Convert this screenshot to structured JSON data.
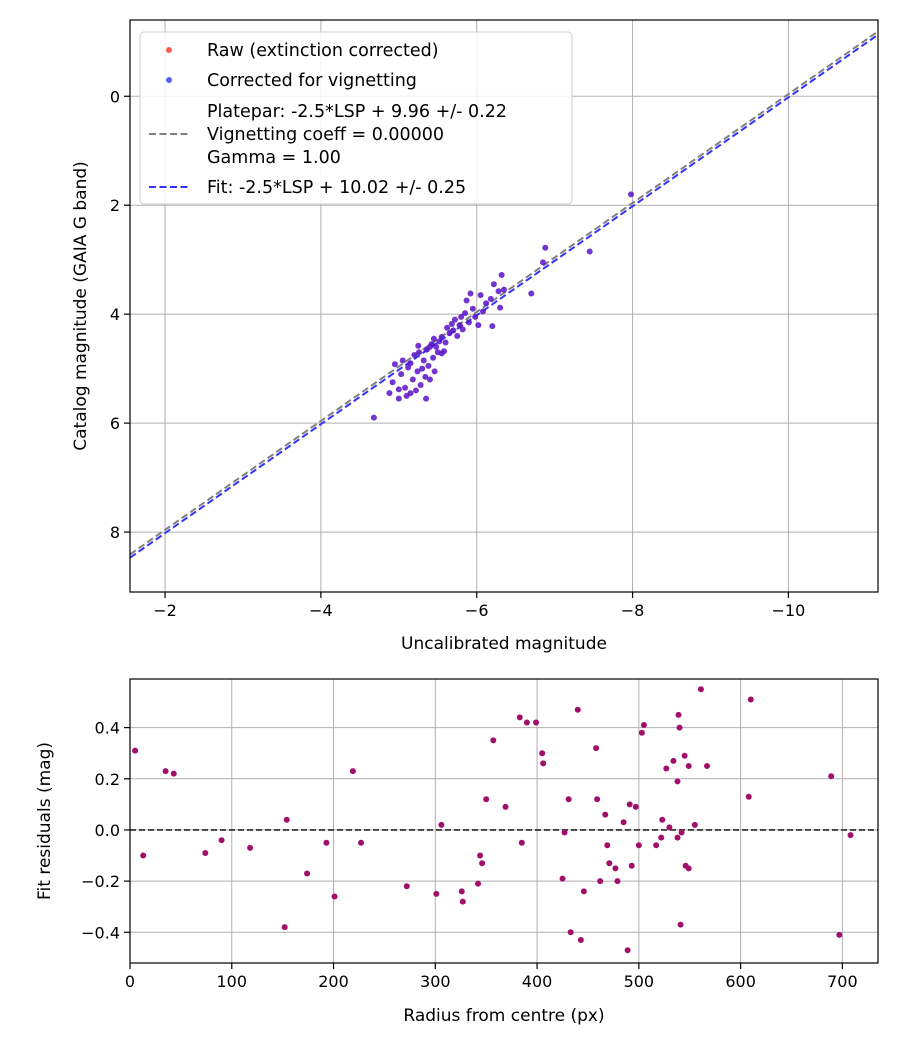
{
  "chart_data": [
    {
      "type": "scatter",
      "xlabel": "Uncalibrated magnitude",
      "ylabel": "Catalog magnitude (GAIA G band)",
      "xlim": [
        -1.55,
        -11.15
      ],
      "ylim": [
        9.1,
        -1.4
      ],
      "x_ticks": [
        -2,
        -4,
        -6,
        -8,
        -10
      ],
      "x_tick_labels": [
        "−2",
        "−4",
        "−6",
        "−8",
        "−10"
      ],
      "y_ticks": [
        0,
        2,
        4,
        6,
        8
      ],
      "y_tick_labels": [
        "0",
        "2",
        "4",
        "6",
        "8"
      ],
      "grid": true,
      "legend": {
        "position": "upper-left",
        "entries": [
          {
            "label": "Raw (extinction corrected)",
            "marker": "dot",
            "color": "#ff5a4f"
          },
          {
            "label": "Corrected for vignetting",
            "marker": "dot",
            "color": "#5a5aff"
          },
          {
            "label": "Platepar: -2.5*LSP + 9.96 +/- 0.22",
            "label2": "Vignetting coeff = 0.00000",
            "label3": "Gamma = 1.00",
            "marker": "dashed",
            "color": "#808080"
          },
          {
            "label": "Fit: -2.5*LSP + 10.02 +/- 0.25",
            "marker": "dashed",
            "color": "#3333ff"
          }
        ]
      },
      "lines": [
        {
          "name": "Platepar",
          "slope": 1,
          "intercept": 9.96,
          "color": "#808080",
          "style": "dashed"
        },
        {
          "name": "Fit",
          "slope": 1,
          "intercept": 10.02,
          "color": "#3333ff",
          "style": "dashed"
        }
      ],
      "series": [
        {
          "name": "Raw and corrected points (overlapping)",
          "color": "#5a12c8",
          "points": [
            [
              -4.68,
              5.9
            ],
            [
              -4.88,
              5.45
            ],
            [
              -4.92,
              5.25
            ],
            [
              -4.95,
              4.92
            ],
            [
              -5.0,
              5.55
            ],
            [
              -5.03,
              5.1
            ],
            [
              -5.05,
              4.85
            ],
            [
              -5.08,
              5.35
            ],
            [
              -5.1,
              5.5
            ],
            [
              -5.12,
              4.98
            ],
            [
              -5.15,
              5.45
            ],
            [
              -5.18,
              5.2
            ],
            [
              -5.2,
              4.75
            ],
            [
              -5.22,
              5.4
            ],
            [
              -5.24,
              5.05
            ],
            [
              -5.26,
              4.7
            ],
            [
              -5.28,
              5.3
            ],
            [
              -5.3,
              5.0
            ],
            [
              -5.32,
              4.85
            ],
            [
              -5.34,
              5.15
            ],
            [
              -5.36,
              4.65
            ],
            [
              -5.38,
              4.95
            ],
            [
              -5.4,
              5.2
            ],
            [
              -5.42,
              4.55
            ],
            [
              -5.44,
              4.8
            ],
            [
              -5.46,
              5.05
            ],
            [
              -5.48,
              4.6
            ],
            [
              -5.5,
              4.7
            ],
            [
              -5.52,
              4.5
            ],
            [
              -5.55,
              4.42
            ],
            [
              -5.58,
              4.68
            ],
            [
              -5.6,
              4.52
            ],
            [
              -5.62,
              4.25
            ],
            [
              -5.65,
              4.35
            ],
            [
              -5.68,
              4.18
            ],
            [
              -5.7,
              4.3
            ],
            [
              -5.72,
              4.1
            ],
            [
              -5.75,
              4.4
            ],
            [
              -5.78,
              4.2
            ],
            [
              -5.8,
              4.05
            ],
            [
              -5.82,
              4.28
            ],
            [
              -5.85,
              3.98
            ],
            [
              -5.87,
              3.75
            ],
            [
              -5.9,
              4.15
            ],
            [
              -5.92,
              3.62
            ],
            [
              -5.95,
              3.9
            ],
            [
              -5.98,
              4.05
            ],
            [
              -6.02,
              4.2
            ],
            [
              -6.05,
              3.65
            ],
            [
              -6.08,
              3.95
            ],
            [
              -6.12,
              3.8
            ],
            [
              -6.18,
              3.72
            ],
            [
              -6.2,
              4.22
            ],
            [
              -6.22,
              3.45
            ],
            [
              -6.28,
              3.58
            ],
            [
              -6.32,
              3.28
            ],
            [
              -6.35,
              3.55
            ],
            [
              -6.3,
              3.88
            ],
            [
              -6.7,
              3.62
            ],
            [
              -6.85,
              3.05
            ],
            [
              -6.88,
              2.78
            ],
            [
              -7.45,
              2.85
            ],
            [
              -7.98,
              1.8
            ],
            [
              -5.35,
              5.55
            ],
            [
              -5.25,
              4.58
            ],
            [
              -5.4,
              4.6
            ],
            [
              -5.45,
              4.45
            ],
            [
              -5.55,
              4.72
            ],
            [
              -5.15,
              4.9
            ],
            [
              -5.0,
              5.38
            ]
          ]
        }
      ]
    },
    {
      "type": "scatter",
      "xlabel": "Radius from centre (px)",
      "ylabel": "Fit residuals (mag)",
      "xlim": [
        0,
        735
      ],
      "ylim": [
        -0.52,
        0.59
      ],
      "x_ticks": [
        0,
        100,
        200,
        300,
        400,
        500,
        600,
        700
      ],
      "x_tick_labels": [
        "0",
        "100",
        "200",
        "300",
        "400",
        "500",
        "600",
        "700"
      ],
      "y_ticks": [
        -0.4,
        -0.2,
        0.0,
        0.2,
        0.4
      ],
      "y_tick_labels": [
        "−0.4",
        "−0.2",
        "0.0",
        "0.2",
        "0.4"
      ],
      "grid": true,
      "reference_line": {
        "y": 0,
        "color": "#404040",
        "style": "dashed"
      },
      "series": [
        {
          "name": "Residuals",
          "color": "#a0106a",
          "points": [
            [
              5,
              0.31
            ],
            [
              13,
              -0.1
            ],
            [
              35,
              0.23
            ],
            [
              43,
              0.22
            ],
            [
              74,
              -0.09
            ],
            [
              90,
              -0.04
            ],
            [
              118,
              -0.07
            ],
            [
              152,
              -0.38
            ],
            [
              154,
              0.04
            ],
            [
              174,
              -0.17
            ],
            [
              193,
              -0.05
            ],
            [
              201,
              -0.26
            ],
            [
              219,
              0.23
            ],
            [
              227,
              -0.05
            ],
            [
              272,
              -0.22
            ],
            [
              301,
              -0.25
            ],
            [
              306,
              0.02
            ],
            [
              326,
              -0.24
            ],
            [
              327,
              -0.28
            ],
            [
              342,
              -0.21
            ],
            [
              344,
              -0.1
            ],
            [
              346,
              -0.13
            ],
            [
              350,
              0.12
            ],
            [
              357,
              0.35
            ],
            [
              369,
              0.09
            ],
            [
              383,
              0.44
            ],
            [
              385,
              -0.05
            ],
            [
              390,
              0.42
            ],
            [
              399,
              0.42
            ],
            [
              405,
              0.3
            ],
            [
              406,
              0.26
            ],
            [
              425,
              -0.19
            ],
            [
              427,
              -0.01
            ],
            [
              431,
              0.12
            ],
            [
              433,
              -0.4
            ],
            [
              440,
              0.47
            ],
            [
              443,
              -0.43
            ],
            [
              446,
              -0.24
            ],
            [
              458,
              0.32
            ],
            [
              459,
              0.12
            ],
            [
              462,
              -0.2
            ],
            [
              467,
              0.06
            ],
            [
              469,
              -0.06
            ],
            [
              471,
              -0.13
            ],
            [
              477,
              -0.15
            ],
            [
              479,
              -0.2
            ],
            [
              485,
              0.03
            ],
            [
              489,
              -0.47
            ],
            [
              491,
              0.1
            ],
            [
              493,
              -0.14
            ],
            [
              497,
              0.09
            ],
            [
              500,
              -0.06
            ],
            [
              503,
              0.38
            ],
            [
              505,
              0.41
            ],
            [
              517,
              -0.06
            ],
            [
              522,
              -0.03
            ],
            [
              523,
              0.04
            ],
            [
              527,
              0.24
            ],
            [
              530,
              0.01
            ],
            [
              534,
              0.27
            ],
            [
              538,
              -0.03
            ],
            [
              538,
              0.19
            ],
            [
              539,
              0.45
            ],
            [
              540,
              0.4
            ],
            [
              541,
              -0.37
            ],
            [
              542,
              -0.01
            ],
            [
              545,
              0.29
            ],
            [
              546,
              -0.14
            ],
            [
              549,
              0.25
            ],
            [
              549,
              -0.15
            ],
            [
              555,
              0.02
            ],
            [
              561,
              0.55
            ],
            [
              567,
              0.25
            ],
            [
              608,
              0.13
            ],
            [
              610,
              0.51
            ],
            [
              689,
              0.21
            ],
            [
              697,
              -0.41
            ],
            [
              708,
              -0.02
            ]
          ]
        }
      ]
    }
  ]
}
